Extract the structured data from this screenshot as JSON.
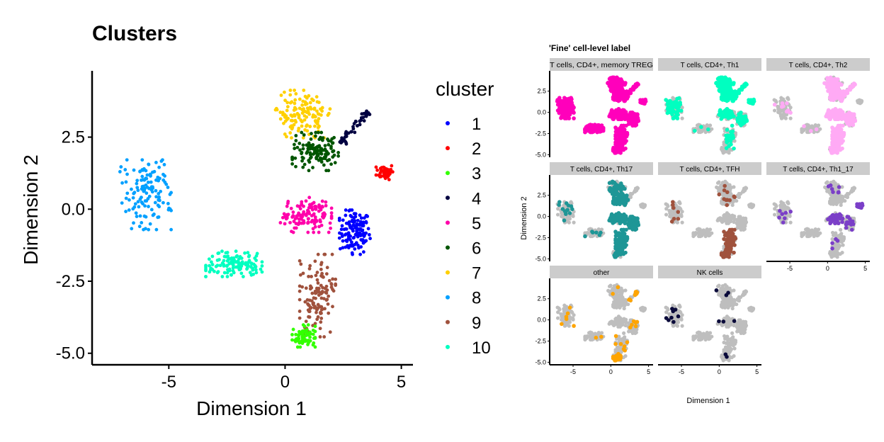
{
  "chart_data": [
    {
      "type": "scatter",
      "title": "Clusters",
      "xlabel": "Dimension 1",
      "ylabel": "Dimension 2",
      "xlim": [
        -8.3,
        5.5
      ],
      "ylim": [
        -5.4,
        4.8
      ],
      "xticks": [
        "-5",
        "0",
        "5"
      ],
      "xtick_values": [
        -5,
        0,
        5
      ],
      "yticks": [
        "2.5",
        "0.0",
        "-2.5",
        "-5.0"
      ],
      "ytick_values": [
        2.5,
        0,
        -2.5,
        -5
      ],
      "grid": false,
      "legend": {
        "title": "cluster",
        "placement": "right"
      },
      "series": [
        {
          "name": "1",
          "color": "#0000FF",
          "center": [
            3.0,
            -0.8
          ],
          "spread": [
            0.6,
            0.7
          ]
        },
        {
          "name": "2",
          "color": "#FF0000",
          "center": [
            4.3,
            1.3
          ],
          "spread": [
            0.35,
            0.25
          ]
        },
        {
          "name": "3",
          "color": "#33FF00",
          "center": [
            0.8,
            -4.4
          ],
          "spread": [
            0.45,
            0.35
          ]
        },
        {
          "name": "4",
          "color": "#000040",
          "center": [
            3.0,
            2.8
          ],
          "spread": [
            0.4,
            0.3
          ]
        },
        {
          "name": "5",
          "color": "#FF00AA",
          "center": [
            0.9,
            -0.2
          ],
          "spread": [
            1.0,
            0.55
          ]
        },
        {
          "name": "6",
          "color": "#005500",
          "center": [
            1.3,
            2.0
          ],
          "spread": [
            0.9,
            0.6
          ]
        },
        {
          "name": "7",
          "color": "#FFD000",
          "center": [
            0.8,
            3.3
          ],
          "spread": [
            1.1,
            0.75
          ]
        },
        {
          "name": "8",
          "color": "#00A0FF",
          "center": [
            -6.0,
            0.5
          ],
          "spread": [
            1.0,
            1.1
          ]
        },
        {
          "name": "9",
          "color": "#A0523D",
          "center": [
            1.4,
            -3.0
          ],
          "spread": [
            0.7,
            1.3
          ]
        },
        {
          "name": "10",
          "color": "#00FFC0",
          "center": [
            -2.2,
            -1.9
          ],
          "spread": [
            1.1,
            0.4
          ]
        }
      ]
    },
    {
      "type": "scatter",
      "title": "'Fine' cell-level label",
      "xlabel": "Dimension 1",
      "ylabel": "Dimension 2",
      "xlim": [
        -8.1,
        5.6
      ],
      "ylim": [
        -5.3,
        4.9
      ],
      "xticks": [
        "-5",
        "0",
        "5"
      ],
      "xtick_values": [
        -5,
        0,
        5
      ],
      "yticks": [
        "2.5",
        "0.0",
        "-2.5",
        "-5.0"
      ],
      "ytick_values": [
        2.5,
        0,
        -2.5,
        -5
      ],
      "background_color": "#BEBEBE",
      "strip_color": "#CCCCCC",
      "facets": [
        {
          "label": "T cells, CD4+, memory TREG",
          "color": "#FF00BB",
          "highlight": {
            "1": 1,
            "2": 1,
            "3": 1,
            "4": 1,
            "5": 1,
            "6": 1,
            "7": 0.95,
            "8": 1,
            "9": 0.95,
            "10": 1
          }
        },
        {
          "label": "T cells, CD4+, Th1",
          "color": "#00FFC0",
          "highlight": {
            "6": 0.9,
            "7": 0.9,
            "4": 0.6,
            "2": 0.9,
            "8": 0.4,
            "5": 0.4,
            "1": 0.3,
            "9": 0.2,
            "10": 0.03
          }
        },
        {
          "label": "T cells, CD4+, Th2",
          "color": "#FFAAF5",
          "highlight": {
            "5": 0.9,
            "9": 0.9,
            "1": 0.7,
            "7": 0.5,
            "6": 0.6,
            "3": 0.8,
            "4": 0.8,
            "8": 0.08,
            "10": 0.03
          }
        },
        {
          "label": "T cells, CD4+, Th17",
          "color": "#1E9696",
          "highlight": {
            "5": 0.8,
            "9": 0.85,
            "1": 0.9,
            "6": 0.6,
            "7": 0.3,
            "8": 0.1,
            "10": 0.05,
            "3": 0.3
          }
        },
        {
          "label": "T cells, CD4+, TFH",
          "color": "#A0523D",
          "highlight": {
            "9": 0.7,
            "3": 0.6,
            "8": 0.05,
            "7": 0.03,
            "6": 0.05
          }
        },
        {
          "label": "T cells, CD4+, Th1_17",
          "color": "#7B3FC8",
          "highlight": {
            "2": 0.9,
            "5": 0.25,
            "8": 0.05,
            "1": 0.1,
            "7": 0.05,
            "9": 0.03
          }
        },
        {
          "label": "other",
          "color": "#FFA500",
          "highlight": {
            "3": 0.7,
            "9": 0.06,
            "8": 0.05,
            "1": 0.05,
            "7": 0.02,
            "4": 0.2,
            "10": 0.02
          }
        },
        {
          "label": "NK cells",
          "color": "#0A0A3A",
          "highlight": {
            "8": 0.06,
            "7": 0.03,
            "5": 0.02,
            "3": 0.02
          }
        }
      ]
    }
  ]
}
